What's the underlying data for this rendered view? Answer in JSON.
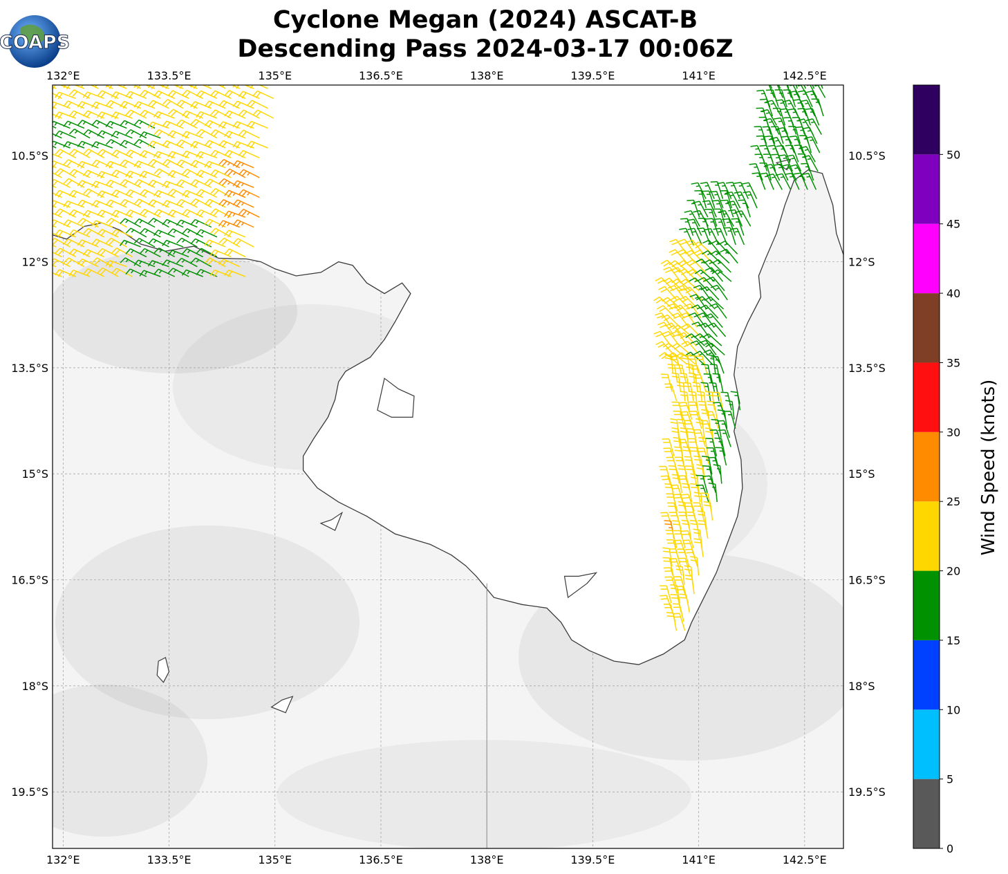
{
  "title": {
    "line1": "Cyclone Megan (2024) ASCAT-B",
    "line2": "Descending Pass 2024-03-17 00:06Z"
  },
  "logo": {
    "text": "COAPS",
    "icon": "globe-icon"
  },
  "map": {
    "lon_range": [
      131.85,
      143.05
    ],
    "lat_range": [
      -20.3,
      -9.5
    ],
    "lon_ticks": [
      {
        "value": 132.0,
        "label": "132°E"
      },
      {
        "value": 133.5,
        "label": "133.5°E"
      },
      {
        "value": 135.0,
        "label": "135°E"
      },
      {
        "value": 136.5,
        "label": "136.5°E"
      },
      {
        "value": 138.0,
        "label": "138°E"
      },
      {
        "value": 139.5,
        "label": "139.5°E"
      },
      {
        "value": 141.0,
        "label": "141°E"
      },
      {
        "value": 142.5,
        "label": "142.5°E"
      }
    ],
    "lat_ticks": [
      {
        "value": -10.5,
        "label": "10.5°S"
      },
      {
        "value": -12.0,
        "label": "12°S"
      },
      {
        "value": -13.5,
        "label": "13.5°S"
      },
      {
        "value": -15.0,
        "label": "15°S"
      },
      {
        "value": -16.5,
        "label": "16.5°S"
      },
      {
        "value": -18.0,
        "label": "18°S"
      },
      {
        "value": -19.5,
        "label": "19.5°S"
      }
    ],
    "gridlines": true,
    "background": "#f4f4f4",
    "coastline_color": "#3a3a3a",
    "coastline_mainland": [
      [
        131.85,
        -11.62
      ],
      [
        132.05,
        -11.68
      ],
      [
        132.3,
        -11.5
      ],
      [
        132.55,
        -11.45
      ],
      [
        132.8,
        -11.55
      ],
      [
        133.1,
        -11.75
      ],
      [
        133.45,
        -11.85
      ],
      [
        133.85,
        -11.78
      ],
      [
        134.2,
        -11.95
      ],
      [
        134.6,
        -11.96
      ],
      [
        134.8,
        -12.0
      ],
      [
        135.0,
        -12.1
      ],
      [
        135.3,
        -12.2
      ],
      [
        135.65,
        -12.15
      ],
      [
        135.9,
        -12.0
      ],
      [
        136.1,
        -12.05
      ],
      [
        136.3,
        -12.3
      ],
      [
        136.55,
        -12.45
      ],
      [
        136.8,
        -12.3
      ],
      [
        136.92,
        -12.45
      ],
      [
        136.7,
        -12.85
      ],
      [
        136.55,
        -13.1
      ],
      [
        136.35,
        -13.35
      ],
      [
        136.0,
        -13.55
      ],
      [
        135.9,
        -13.7
      ],
      [
        135.85,
        -13.95
      ],
      [
        135.75,
        -14.2
      ],
      [
        135.55,
        -14.5
      ],
      [
        135.4,
        -14.75
      ],
      [
        135.4,
        -14.95
      ],
      [
        135.6,
        -15.2
      ],
      [
        135.9,
        -15.4
      ],
      [
        136.3,
        -15.6
      ],
      [
        136.7,
        -15.85
      ],
      [
        137.2,
        -16.0
      ],
      [
        137.5,
        -16.15
      ],
      [
        137.7,
        -16.3
      ],
      [
        137.85,
        -16.45
      ],
      [
        138.1,
        -16.75
      ],
      [
        138.5,
        -16.85
      ],
      [
        138.85,
        -16.9
      ],
      [
        139.05,
        -17.1
      ],
      [
        139.2,
        -17.35
      ],
      [
        139.45,
        -17.5
      ],
      [
        139.8,
        -17.65
      ],
      [
        140.15,
        -17.7
      ],
      [
        140.5,
        -17.55
      ],
      [
        140.8,
        -17.35
      ],
      [
        140.9,
        -17.1
      ],
      [
        141.05,
        -16.8
      ],
      [
        141.25,
        -16.4
      ],
      [
        141.4,
        -16.0
      ],
      [
        141.55,
        -15.6
      ],
      [
        141.62,
        -15.2
      ],
      [
        141.6,
        -14.8
      ],
      [
        141.5,
        -14.4
      ],
      [
        141.58,
        -14.0
      ],
      [
        141.5,
        -13.6
      ],
      [
        141.55,
        -13.2
      ],
      [
        141.7,
        -12.85
      ],
      [
        141.88,
        -12.5
      ],
      [
        141.85,
        -12.2
      ],
      [
        141.95,
        -11.95
      ],
      [
        142.1,
        -11.6
      ],
      [
        142.22,
        -11.2
      ],
      [
        142.35,
        -10.85
      ],
      [
        142.55,
        -10.7
      ],
      [
        142.75,
        -10.75
      ],
      [
        142.9,
        -11.2
      ],
      [
        142.95,
        -11.6
      ],
      [
        143.05,
        -11.9
      ]
    ],
    "coastline_islands": [
      [
        [
          136.55,
          -13.65
        ],
        [
          136.75,
          -13.8
        ],
        [
          136.97,
          -13.9
        ],
        [
          136.95,
          -14.2
        ],
        [
          136.65,
          -14.2
        ],
        [
          136.45,
          -14.1
        ],
        [
          136.55,
          -13.65
        ]
      ],
      [
        [
          139.1,
          -16.45
        ],
        [
          139.3,
          -16.45
        ],
        [
          139.55,
          -16.4
        ],
        [
          139.42,
          -16.55
        ],
        [
          139.15,
          -16.75
        ],
        [
          139.1,
          -16.45
        ]
      ],
      [
        [
          133.35,
          -17.65
        ],
        [
          133.45,
          -17.6
        ],
        [
          133.5,
          -17.8
        ],
        [
          133.42,
          -17.95
        ],
        [
          133.33,
          -17.85
        ],
        [
          133.35,
          -17.65
        ]
      ],
      [
        [
          134.95,
          -18.3
        ],
        [
          135.1,
          -18.2
        ],
        [
          135.25,
          -18.15
        ],
        [
          135.15,
          -18.38
        ],
        [
          134.95,
          -18.3
        ]
      ],
      [
        [
          135.65,
          -15.7
        ],
        [
          135.8,
          -15.65
        ],
        [
          135.95,
          -15.55
        ],
        [
          135.85,
          -15.8
        ],
        [
          135.65,
          -15.7
        ]
      ],
      [
        [
          142.1,
          -10.6
        ],
        [
          142.3,
          -10.55
        ],
        [
          142.25,
          -10.7
        ],
        [
          142.1,
          -10.6
        ]
      ]
    ],
    "state_border": [
      [
        138.0,
        -16.55
      ],
      [
        138.0,
        -20.3
      ]
    ]
  },
  "wind_swaths": [
    {
      "name": "west-swath",
      "lon_min": 131.85,
      "lon_max": 135.05,
      "lat_min": -12.25,
      "lat_max": -9.5
    },
    {
      "name": "east-swath",
      "lon_min": 140.6,
      "lon_max": 143.0,
      "lat_min": -17.5,
      "lat_max": -9.5
    }
  ],
  "colorbar": {
    "label": "Wind Speed (knots)",
    "min": 0,
    "max": 55,
    "bins": [
      {
        "from": 0,
        "to": 5,
        "color": "#595959"
      },
      {
        "from": 5,
        "to": 10,
        "color": "#00bfff"
      },
      {
        "from": 10,
        "to": 15,
        "color": "#0040ff"
      },
      {
        "from": 15,
        "to": 20,
        "color": "#009100"
      },
      {
        "from": 20,
        "to": 25,
        "color": "#ffd700"
      },
      {
        "from": 25,
        "to": 30,
        "color": "#ff8c00"
      },
      {
        "from": 30,
        "to": 35,
        "color": "#ff0f0f"
      },
      {
        "from": 35,
        "to": 40,
        "color": "#7f3f26"
      },
      {
        "from": 40,
        "to": 45,
        "color": "#ff00ff"
      },
      {
        "from": 45,
        "to": 50,
        "color": "#8000c0"
      },
      {
        "from": 50,
        "to": 55,
        "color": "#2f005f"
      }
    ],
    "ticks": [
      "0",
      "5",
      "10",
      "15",
      "20",
      "25",
      "30",
      "35",
      "40",
      "45",
      "50"
    ]
  }
}
